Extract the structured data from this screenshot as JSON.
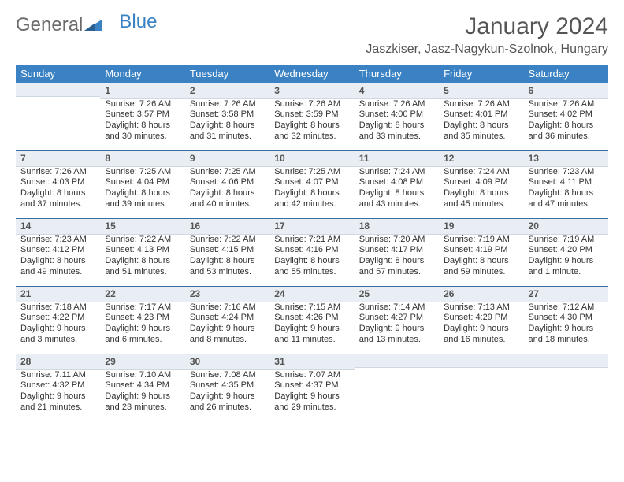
{
  "logo": {
    "part1": "General",
    "part2": "Blue"
  },
  "title": "January 2024",
  "location": "Jaszkiser, Jasz-Nagykun-Szolnok, Hungary",
  "colors": {
    "header_bg": "#3b82c4",
    "header_text": "#ffffff",
    "daynum_bg": "#e8eef3",
    "daynum_border_top": "#3b6ea0",
    "page_bg": "#ffffff",
    "text": "#333333"
  },
  "weekdays": [
    "Sunday",
    "Monday",
    "Tuesday",
    "Wednesday",
    "Thursday",
    "Friday",
    "Saturday"
  ],
  "weeks": [
    [
      {
        "day": "",
        "sunrise": "",
        "sunset": "",
        "daylight1": "",
        "daylight2": ""
      },
      {
        "day": "1",
        "sunrise": "Sunrise: 7:26 AM",
        "sunset": "Sunset: 3:57 PM",
        "daylight1": "Daylight: 8 hours",
        "daylight2": "and 30 minutes."
      },
      {
        "day": "2",
        "sunrise": "Sunrise: 7:26 AM",
        "sunset": "Sunset: 3:58 PM",
        "daylight1": "Daylight: 8 hours",
        "daylight2": "and 31 minutes."
      },
      {
        "day": "3",
        "sunrise": "Sunrise: 7:26 AM",
        "sunset": "Sunset: 3:59 PM",
        "daylight1": "Daylight: 8 hours",
        "daylight2": "and 32 minutes."
      },
      {
        "day": "4",
        "sunrise": "Sunrise: 7:26 AM",
        "sunset": "Sunset: 4:00 PM",
        "daylight1": "Daylight: 8 hours",
        "daylight2": "and 33 minutes."
      },
      {
        "day": "5",
        "sunrise": "Sunrise: 7:26 AM",
        "sunset": "Sunset: 4:01 PM",
        "daylight1": "Daylight: 8 hours",
        "daylight2": "and 35 minutes."
      },
      {
        "day": "6",
        "sunrise": "Sunrise: 7:26 AM",
        "sunset": "Sunset: 4:02 PM",
        "daylight1": "Daylight: 8 hours",
        "daylight2": "and 36 minutes."
      }
    ],
    [
      {
        "day": "7",
        "sunrise": "Sunrise: 7:26 AM",
        "sunset": "Sunset: 4:03 PM",
        "daylight1": "Daylight: 8 hours",
        "daylight2": "and 37 minutes."
      },
      {
        "day": "8",
        "sunrise": "Sunrise: 7:25 AM",
        "sunset": "Sunset: 4:04 PM",
        "daylight1": "Daylight: 8 hours",
        "daylight2": "and 39 minutes."
      },
      {
        "day": "9",
        "sunrise": "Sunrise: 7:25 AM",
        "sunset": "Sunset: 4:06 PM",
        "daylight1": "Daylight: 8 hours",
        "daylight2": "and 40 minutes."
      },
      {
        "day": "10",
        "sunrise": "Sunrise: 7:25 AM",
        "sunset": "Sunset: 4:07 PM",
        "daylight1": "Daylight: 8 hours",
        "daylight2": "and 42 minutes."
      },
      {
        "day": "11",
        "sunrise": "Sunrise: 7:24 AM",
        "sunset": "Sunset: 4:08 PM",
        "daylight1": "Daylight: 8 hours",
        "daylight2": "and 43 minutes."
      },
      {
        "day": "12",
        "sunrise": "Sunrise: 7:24 AM",
        "sunset": "Sunset: 4:09 PM",
        "daylight1": "Daylight: 8 hours",
        "daylight2": "and 45 minutes."
      },
      {
        "day": "13",
        "sunrise": "Sunrise: 7:23 AM",
        "sunset": "Sunset: 4:11 PM",
        "daylight1": "Daylight: 8 hours",
        "daylight2": "and 47 minutes."
      }
    ],
    [
      {
        "day": "14",
        "sunrise": "Sunrise: 7:23 AM",
        "sunset": "Sunset: 4:12 PM",
        "daylight1": "Daylight: 8 hours",
        "daylight2": "and 49 minutes."
      },
      {
        "day": "15",
        "sunrise": "Sunrise: 7:22 AM",
        "sunset": "Sunset: 4:13 PM",
        "daylight1": "Daylight: 8 hours",
        "daylight2": "and 51 minutes."
      },
      {
        "day": "16",
        "sunrise": "Sunrise: 7:22 AM",
        "sunset": "Sunset: 4:15 PM",
        "daylight1": "Daylight: 8 hours",
        "daylight2": "and 53 minutes."
      },
      {
        "day": "17",
        "sunrise": "Sunrise: 7:21 AM",
        "sunset": "Sunset: 4:16 PM",
        "daylight1": "Daylight: 8 hours",
        "daylight2": "and 55 minutes."
      },
      {
        "day": "18",
        "sunrise": "Sunrise: 7:20 AM",
        "sunset": "Sunset: 4:17 PM",
        "daylight1": "Daylight: 8 hours",
        "daylight2": "and 57 minutes."
      },
      {
        "day": "19",
        "sunrise": "Sunrise: 7:19 AM",
        "sunset": "Sunset: 4:19 PM",
        "daylight1": "Daylight: 8 hours",
        "daylight2": "and 59 minutes."
      },
      {
        "day": "20",
        "sunrise": "Sunrise: 7:19 AM",
        "sunset": "Sunset: 4:20 PM",
        "daylight1": "Daylight: 9 hours",
        "daylight2": "and 1 minute."
      }
    ],
    [
      {
        "day": "21",
        "sunrise": "Sunrise: 7:18 AM",
        "sunset": "Sunset: 4:22 PM",
        "daylight1": "Daylight: 9 hours",
        "daylight2": "and 3 minutes."
      },
      {
        "day": "22",
        "sunrise": "Sunrise: 7:17 AM",
        "sunset": "Sunset: 4:23 PM",
        "daylight1": "Daylight: 9 hours",
        "daylight2": "and 6 minutes."
      },
      {
        "day": "23",
        "sunrise": "Sunrise: 7:16 AM",
        "sunset": "Sunset: 4:24 PM",
        "daylight1": "Daylight: 9 hours",
        "daylight2": "and 8 minutes."
      },
      {
        "day": "24",
        "sunrise": "Sunrise: 7:15 AM",
        "sunset": "Sunset: 4:26 PM",
        "daylight1": "Daylight: 9 hours",
        "daylight2": "and 11 minutes."
      },
      {
        "day": "25",
        "sunrise": "Sunrise: 7:14 AM",
        "sunset": "Sunset: 4:27 PM",
        "daylight1": "Daylight: 9 hours",
        "daylight2": "and 13 minutes."
      },
      {
        "day": "26",
        "sunrise": "Sunrise: 7:13 AM",
        "sunset": "Sunset: 4:29 PM",
        "daylight1": "Daylight: 9 hours",
        "daylight2": "and 16 minutes."
      },
      {
        "day": "27",
        "sunrise": "Sunrise: 7:12 AM",
        "sunset": "Sunset: 4:30 PM",
        "daylight1": "Daylight: 9 hours",
        "daylight2": "and 18 minutes."
      }
    ],
    [
      {
        "day": "28",
        "sunrise": "Sunrise: 7:11 AM",
        "sunset": "Sunset: 4:32 PM",
        "daylight1": "Daylight: 9 hours",
        "daylight2": "and 21 minutes."
      },
      {
        "day": "29",
        "sunrise": "Sunrise: 7:10 AM",
        "sunset": "Sunset: 4:34 PM",
        "daylight1": "Daylight: 9 hours",
        "daylight2": "and 23 minutes."
      },
      {
        "day": "30",
        "sunrise": "Sunrise: 7:08 AM",
        "sunset": "Sunset: 4:35 PM",
        "daylight1": "Daylight: 9 hours",
        "daylight2": "and 26 minutes."
      },
      {
        "day": "31",
        "sunrise": "Sunrise: 7:07 AM",
        "sunset": "Sunset: 4:37 PM",
        "daylight1": "Daylight: 9 hours",
        "daylight2": "and 29 minutes."
      },
      {
        "day": "",
        "sunrise": "",
        "sunset": "",
        "daylight1": "",
        "daylight2": ""
      },
      {
        "day": "",
        "sunrise": "",
        "sunset": "",
        "daylight1": "",
        "daylight2": ""
      },
      {
        "day": "",
        "sunrise": "",
        "sunset": "",
        "daylight1": "",
        "daylight2": ""
      }
    ]
  ]
}
